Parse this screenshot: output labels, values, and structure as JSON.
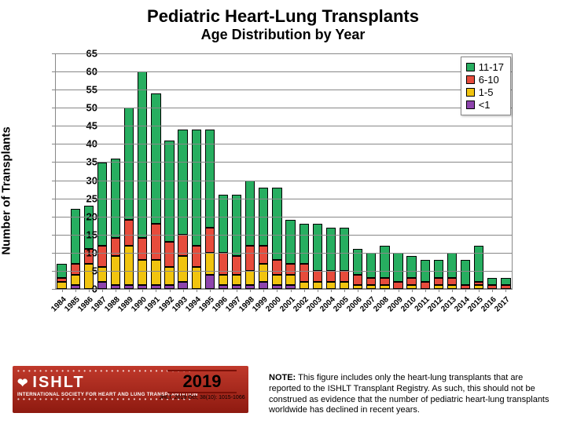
{
  "title": "Pediatric Heart-Lung Transplants",
  "subtitle": "Age Distribution by Year",
  "ylabel": "Number of Transplants",
  "chart": {
    "type": "stacked-bar",
    "ylim": [
      0,
      65
    ],
    "ytick_step": 5,
    "bar_width_ratio": 0.72,
    "grid_color": "#888888",
    "background_color": "#ffffff",
    "categories": [
      "1984",
      "1985",
      "1986",
      "1987",
      "1988",
      "1989",
      "1990",
      "1991",
      "1992",
      "1993",
      "1994",
      "1995",
      "1996",
      "1997",
      "1998",
      "1999",
      "2000",
      "2001",
      "2002",
      "2003",
      "2004",
      "2005",
      "2006",
      "2007",
      "2008",
      "2009",
      "2010",
      "2011",
      "2012",
      "2013",
      "2014",
      "2015",
      "2016",
      "2017"
    ],
    "series": [
      {
        "name": "<1",
        "color": "#8e44ad"
      },
      {
        "name": "1-5",
        "color": "#f1c40f"
      },
      {
        "name": "6-10",
        "color": "#e74c3c"
      },
      {
        "name": "11-17",
        "color": "#27ae60"
      }
    ],
    "legend_order": [
      "11-17",
      "6-10",
      "1-5",
      "<1"
    ],
    "data": {
      "<1": [
        0,
        1,
        0,
        2,
        1,
        1,
        1,
        1,
        1,
        2,
        0,
        4,
        1,
        1,
        1,
        2,
        1,
        1,
        0,
        0,
        0,
        0,
        0,
        0,
        0,
        0,
        0,
        0,
        0,
        0,
        0,
        0,
        0,
        0
      ],
      "1-5": [
        2,
        3,
        7,
        4,
        8,
        11,
        7,
        7,
        5,
        7,
        6,
        6,
        3,
        3,
        4,
        5,
        3,
        3,
        2,
        2,
        2,
        2,
        1,
        1,
        1,
        0,
        1,
        0,
        1,
        1,
        0,
        1,
        0,
        0
      ],
      "6-10": [
        1,
        3,
        4,
        6,
        5,
        7,
        6,
        10,
        7,
        6,
        6,
        7,
        6,
        5,
        7,
        5,
        4,
        3,
        5,
        3,
        3,
        3,
        3,
        2,
        2,
        2,
        2,
        2,
        2,
        2,
        1,
        1,
        1,
        1
      ],
      "11-17": [
        4,
        15,
        12,
        23,
        22,
        31,
        46,
        36,
        28,
        29,
        32,
        27,
        16,
        17,
        18,
        16,
        20,
        12,
        11,
        13,
        12,
        12,
        7,
        7,
        9,
        8,
        6,
        6,
        5,
        7,
        7,
        10,
        2,
        2
      ]
    }
  },
  "note": "NOTE: This figure includes only the heart-lung transplants that are reported to the ISHLT Transplant Registry. As such, this should not be construed as evidence that the number of pediatric heart-lung transplants worldwide has declined in recent years.",
  "logo": {
    "acronym": "ISHLT",
    "full": "INTERNATIONAL SOCIETY FOR HEART AND LUNG TRANSPLANTATION"
  },
  "year": "2019",
  "citation": "JHLT. 2019 Oct; 38(10): 1015-1066"
}
